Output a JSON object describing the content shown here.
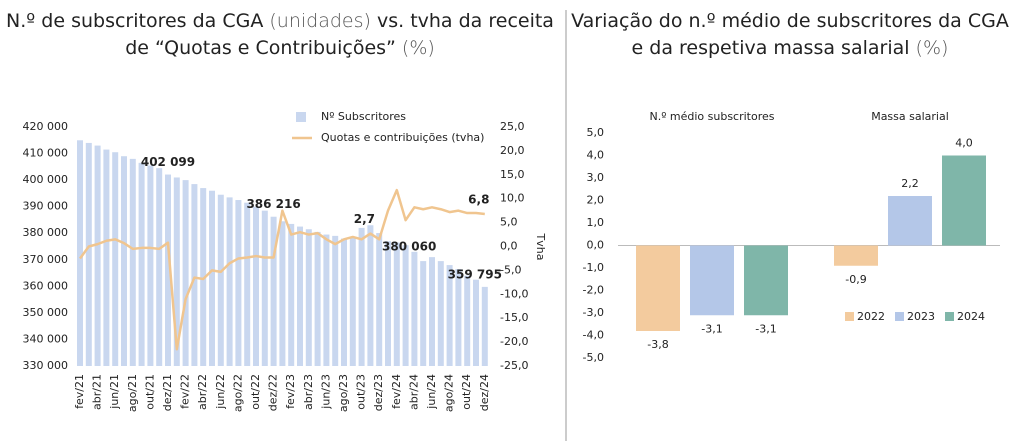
{
  "chart_data": [
    {
      "type": "bar_line",
      "title": [
        "N.º de subscritores da CGA",
        " (unidades)",
        " vs. tvha da receita de “Quotas e Contribuições”",
        " (%)"
      ],
      "y2_label": "Tvha",
      "categories": [
        "fev/21",
        null,
        "abr/21",
        null,
        "jun/21",
        null,
        "ago/21",
        null,
        "out/21",
        null,
        "dez/21",
        null,
        "fev/22",
        null,
        "abr/22",
        null,
        "jun/22",
        null,
        "ago/22",
        null,
        "out/22",
        null,
        "dez/22",
        null,
        "fev/23",
        null,
        "abr/23",
        null,
        "jun/23",
        null,
        "ago/23",
        null,
        "out/23",
        null,
        "dez/23",
        null,
        "fev/24",
        null,
        "abr/24",
        null,
        "jun/24",
        null,
        "ago/24",
        null,
        "out/24",
        null,
        "dez/24"
      ],
      "series": [
        {
          "name": "Nº Subscritores",
          "type": "bar",
          "color": "#c9d7ef",
          "values": [
            415000,
            414000,
            413000,
            411500,
            410500,
            409000,
            408000,
            406500,
            405500,
            404500,
            402099,
            401000,
            400000,
            398500,
            397000,
            396000,
            394500,
            393500,
            392500,
            391500,
            390000,
            388500,
            386216,
            384500,
            383500,
            382500,
            381500,
            380500,
            379500,
            379000,
            378000,
            378500,
            382000,
            383000,
            380060,
            377000,
            376500,
            375500,
            373000,
            369500,
            371000,
            369500,
            368000,
            366500,
            364000,
            362500,
            359795
          ],
          "value_labels": [
            null,
            null,
            null,
            null,
            null,
            null,
            null,
            null,
            null,
            null,
            "402 099",
            null,
            null,
            null,
            null,
            null,
            null,
            null,
            null,
            null,
            null,
            null,
            "386 216",
            null,
            null,
            null,
            null,
            null,
            null,
            null,
            null,
            null,
            null,
            null,
            "380 060",
            null,
            null,
            null,
            null,
            null,
            null,
            null,
            null,
            null,
            null,
            null,
            "359 795"
          ]
        },
        {
          "name": "Quotas e contribuições (tvha)",
          "type": "line",
          "axis": "y2",
          "color": "#f0c58f",
          "values": [
            -2.5,
            0,
            0.5,
            1.2,
            1.5,
            0.7,
            -0.5,
            -0.3,
            -0.3,
            -0.5,
            0.8,
            -21.5,
            -11,
            -6.5,
            -6.8,
            -5,
            -5.3,
            -3.5,
            -2.5,
            -2.3,
            -2,
            -2.3,
            -2.3,
            7.5,
            2.5,
            3,
            2.5,
            2.8,
            1.5,
            0.5,
            1.5,
            2,
            1.5,
            2.7,
            1.5,
            7.5,
            11.8,
            5.5,
            8.2,
            7.8,
            8.2,
            7.8,
            7.2,
            7.5,
            7,
            7,
            6.8
          ],
          "value_labels": [
            null,
            null,
            null,
            null,
            null,
            null,
            null,
            null,
            null,
            null,
            null,
            null,
            null,
            null,
            null,
            null,
            null,
            null,
            null,
            null,
            null,
            null,
            null,
            null,
            null,
            null,
            null,
            null,
            null,
            null,
            null,
            null,
            null,
            "2,7",
            null,
            null,
            null,
            null,
            null,
            null,
            null,
            null,
            null,
            null,
            null,
            null,
            "6,8"
          ]
        }
      ],
      "ylim": [
        330000,
        420000
      ],
      "yticks": [
        {
          "value": 330000,
          "label": "330 000"
        },
        {
          "value": 340000,
          "label": "340 000"
        },
        {
          "value": 350000,
          "label": "350 000"
        },
        {
          "value": 360000,
          "label": "360 000"
        },
        {
          "value": 370000,
          "label": "370 000"
        },
        {
          "value": 380000,
          "label": "380 000"
        },
        {
          "value": 390000,
          "label": "390 000"
        },
        {
          "value": 400000,
          "label": "400 000"
        },
        {
          "value": 410000,
          "label": "410 000"
        },
        {
          "value": 420000,
          "label": "420 000"
        }
      ],
      "y2lim": [
        -25,
        25
      ],
      "y2ticks": [
        {
          "value": -25,
          "label": "-25,0"
        },
        {
          "value": -20,
          "label": "-20,0"
        },
        {
          "value": -15,
          "label": "-15,0"
        },
        {
          "value": -10,
          "label": "-10,0"
        },
        {
          "value": -5,
          "label": "-5,0"
        },
        {
          "value": 0,
          "label": "0,0"
        },
        {
          "value": 5,
          "label": "5,0"
        },
        {
          "value": 10,
          "label": "10,0"
        },
        {
          "value": 15,
          "label": "15,0"
        },
        {
          "value": 20,
          "label": "20,0"
        },
        {
          "value": 25,
          "label": "25,0"
        }
      ],
      "grid": false,
      "legend": "top"
    },
    {
      "type": "bar",
      "title": [
        "Variação do n.º médio de subscritores da CGA e da respetiva massa salarial",
        " (%)"
      ],
      "categories": [
        "N.º médio subscritores",
        "Massa salarial"
      ],
      "series": [
        {
          "name": "2022",
          "color": "#f3cb9e",
          "values": [
            -3.8,
            -0.9
          ],
          "value_labels": [
            "-3,8",
            "-0,9"
          ]
        },
        {
          "name": "2023",
          "color": "#b4c7e8",
          "values": [
            -3.1,
            2.2
          ],
          "value_labels": [
            "-3,1",
            "2,2"
          ]
        },
        {
          "name": "2024",
          "color": "#7fb6a9",
          "values": [
            -3.1,
            4.0
          ],
          "value_labels": [
            "-3,1",
            "4,0"
          ]
        }
      ],
      "ylim": [
        -5,
        5
      ],
      "yticks": [
        {
          "value": -5,
          "label": "-5,0"
        },
        {
          "value": -4,
          "label": "-4,0"
        },
        {
          "value": -3,
          "label": "-3,0"
        },
        {
          "value": -2,
          "label": "-2,0"
        },
        {
          "value": -1,
          "label": "-1,0"
        },
        {
          "value": 0,
          "label": "0,0"
        },
        {
          "value": 1,
          "label": "1,0"
        },
        {
          "value": 2,
          "label": "2,0"
        },
        {
          "value": 3,
          "label": "3,0"
        },
        {
          "value": 4,
          "label": "4,0"
        },
        {
          "value": 5,
          "label": "5,0"
        }
      ],
      "grid": false,
      "legend": "bottom-right"
    }
  ]
}
